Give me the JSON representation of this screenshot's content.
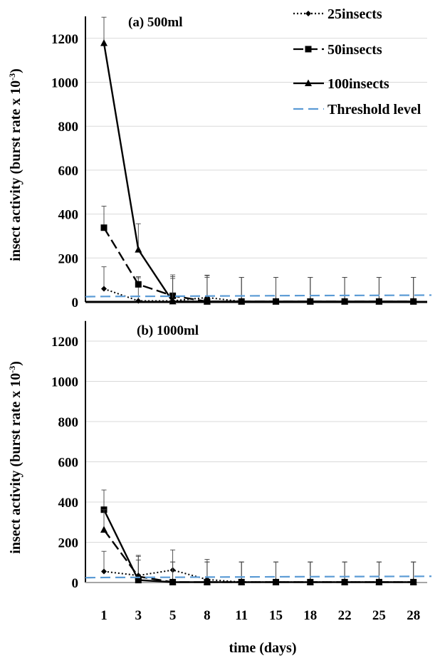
{
  "chart_data": [
    {
      "type": "line",
      "title": "(a) 500ml",
      "ylabel": "insect activity (burst rate x 10",
      "ylabel_sup": "-3",
      "ylabel_close": ")",
      "xlabel": "",
      "categories": [
        "1",
        "3",
        "5",
        "8",
        "11",
        "15",
        "18",
        "22",
        "25",
        "28"
      ],
      "ylim": [
        0,
        1300
      ],
      "yticks": [
        0,
        200,
        400,
        600,
        800,
        1000,
        1200
      ],
      "grid": true,
      "legend_position": "top-right",
      "series": [
        {
          "name": "25insects",
          "style": "dotted",
          "marker": "diamond",
          "values": [
            60,
            5,
            5,
            20,
            2,
            2,
            2,
            2,
            2,
            2
          ],
          "error": [
            100,
            105,
            110,
            100,
            110,
            110,
            110,
            110,
            110,
            110
          ]
        },
        {
          "name": "50insects",
          "style": "dashed",
          "marker": "square",
          "values": [
            338,
            80,
            28,
            2,
            2,
            2,
            2,
            2,
            2,
            2
          ],
          "error": [
            98,
            35,
            95,
            120,
            110,
            110,
            110,
            110,
            110,
            110
          ]
        },
        {
          "name": "100insects",
          "style": "solid",
          "marker": "triangle",
          "values": [
            1178,
            238,
            2,
            2,
            2,
            2,
            2,
            2,
            2,
            2
          ],
          "error": [
            118,
            118,
            105,
            110,
            110,
            110,
            110,
            110,
            110,
            110
          ]
        },
        {
          "name": "Threshold level",
          "style": "threshold",
          "marker": "none",
          "values": [
            25,
            25.5,
            26,
            27,
            27.5,
            28.5,
            29,
            29.5,
            30,
            30.5
          ],
          "error": []
        }
      ]
    },
    {
      "type": "line",
      "title": "(b) 1000ml",
      "ylabel": "insect activity (burst rate x 10",
      "ylabel_sup": "-3",
      "ylabel_close": ")",
      "xlabel": "time (days)",
      "categories": [
        "1",
        "3",
        "5",
        "8",
        "11",
        "15",
        "18",
        "22",
        "25",
        "28"
      ],
      "ylim": [
        0,
        1300
      ],
      "yticks": [
        0,
        200,
        400,
        600,
        800,
        1000,
        1200
      ],
      "grid": true,
      "legend_position": "none",
      "series": [
        {
          "name": "25insects",
          "style": "dotted",
          "marker": "diamond",
          "values": [
            55,
            35,
            62,
            15,
            2,
            2,
            2,
            2,
            2,
            2
          ],
          "error": [
            100,
            100,
            100,
            100,
            100,
            100,
            100,
            100,
            100,
            100
          ]
        },
        {
          "name": "50insects",
          "style": "solid",
          "marker": "square",
          "values": [
            362,
            12,
            2,
            2,
            2,
            2,
            2,
            2,
            2,
            2
          ],
          "error": [
            98,
            100,
            100,
            100,
            100,
            100,
            100,
            100,
            100,
            100
          ]
        },
        {
          "name": "100insects",
          "style": "dashed",
          "marker": "triangle",
          "values": [
            262,
            30,
            2,
            2,
            2,
            2,
            2,
            2,
            2,
            2
          ],
          "error": [
            100,
            100,
            100,
            100,
            100,
            100,
            100,
            100,
            100,
            100
          ]
        },
        {
          "name": "Threshold level",
          "style": "threshold",
          "marker": "none",
          "values": [
            25,
            25.5,
            26,
            27,
            27.5,
            28.5,
            29,
            29.5,
            30,
            30.5
          ],
          "error": []
        }
      ]
    }
  ],
  "colors": {
    "threshold": "#5b9bd5",
    "grid": "#d9d9d9",
    "axis": "#000000",
    "zero_line_b": "#a6a6a6"
  }
}
